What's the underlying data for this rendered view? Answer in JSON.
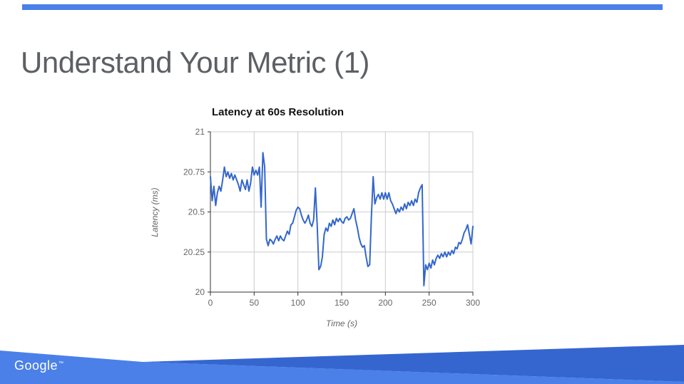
{
  "slide": {
    "title": "Understand Your Metric (1)",
    "top_bar_color": "#4a80e8",
    "footer": {
      "logo": "Google",
      "trademark": "™",
      "band_light": "#4a80e8",
      "band_dark": "#3566d0"
    }
  },
  "chart_data": {
    "type": "line",
    "title": "Latency at 60s Resolution",
    "xlabel": "Time (s)",
    "ylabel": "Latency (ms)",
    "xlim": [
      0,
      300
    ],
    "ylim": [
      20,
      21
    ],
    "xticks": [
      0,
      50,
      100,
      150,
      200,
      250,
      300
    ],
    "yticks": [
      20,
      20.25,
      20.5,
      20.75,
      21
    ],
    "grid": true,
    "legend": false,
    "line_color": "#3366cc",
    "grid_color": "#cccccc",
    "axis_color": "#333333",
    "tick_color": "#666666",
    "series": [
      {
        "name": "latency_ms",
        "x": [
          0,
          2,
          4,
          6,
          8,
          10,
          12,
          14,
          16,
          18,
          20,
          22,
          24,
          26,
          28,
          30,
          32,
          34,
          36,
          38,
          40,
          42,
          44,
          46,
          48,
          50,
          52,
          54,
          56,
          58,
          60,
          62,
          64,
          66,
          68,
          70,
          72,
          74,
          76,
          78,
          80,
          82,
          84,
          86,
          88,
          90,
          92,
          94,
          96,
          98,
          100,
          102,
          104,
          106,
          108,
          110,
          112,
          114,
          116,
          118,
          120,
          122,
          124,
          126,
          128,
          130,
          132,
          134,
          136,
          138,
          140,
          142,
          144,
          146,
          148,
          150,
          152,
          154,
          156,
          158,
          160,
          162,
          164,
          166,
          168,
          170,
          172,
          174,
          176,
          178,
          180,
          182,
          184,
          186,
          188,
          190,
          192,
          194,
          196,
          198,
          200,
          202,
          204,
          206,
          208,
          210,
          212,
          214,
          216,
          218,
          220,
          222,
          224,
          226,
          228,
          230,
          232,
          234,
          236,
          238,
          240,
          242,
          244,
          246,
          248,
          250,
          252,
          254,
          256,
          258,
          260,
          262,
          264,
          266,
          268,
          270,
          272,
          274,
          276,
          278,
          280,
          282,
          284,
          286,
          288,
          290,
          292,
          294,
          296,
          298,
          300
        ],
        "y": [
          20.72,
          20.57,
          20.66,
          20.54,
          20.62,
          20.66,
          20.63,
          20.7,
          20.78,
          20.72,
          20.75,
          20.71,
          20.74,
          20.7,
          20.73,
          20.7,
          20.67,
          20.63,
          20.7,
          20.67,
          20.64,
          20.7,
          20.63,
          20.68,
          20.78,
          20.73,
          20.76,
          20.73,
          20.78,
          20.53,
          20.87,
          20.78,
          20.33,
          20.29,
          20.33,
          20.32,
          20.3,
          20.33,
          20.35,
          20.32,
          20.35,
          20.33,
          20.32,
          20.35,
          20.38,
          20.36,
          20.42,
          20.43,
          20.47,
          20.51,
          20.53,
          20.52,
          20.48,
          20.45,
          20.43,
          20.45,
          20.48,
          20.43,
          20.41,
          20.45,
          20.65,
          20.42,
          20.14,
          20.16,
          20.22,
          20.36,
          20.4,
          20.38,
          20.43,
          20.41,
          20.45,
          20.42,
          20.46,
          20.44,
          20.46,
          20.44,
          20.43,
          20.46,
          20.47,
          20.45,
          20.46,
          20.49,
          20.52,
          20.45,
          20.4,
          20.34,
          20.3,
          20.28,
          20.29,
          20.22,
          20.16,
          20.17,
          20.47,
          20.72,
          20.55,
          20.59,
          20.61,
          20.58,
          20.62,
          20.58,
          20.62,
          20.58,
          20.62,
          20.57,
          20.55,
          20.52,
          20.49,
          20.52,
          20.5,
          20.53,
          20.51,
          20.55,
          20.52,
          20.56,
          20.54,
          20.57,
          20.54,
          20.58,
          20.56,
          20.62,
          20.65,
          20.67,
          20.04,
          20.17,
          20.14,
          20.18,
          20.15,
          20.2,
          20.17,
          20.21,
          20.23,
          20.21,
          20.24,
          20.22,
          20.25,
          20.22,
          20.25,
          20.23,
          20.26,
          20.24,
          20.28,
          20.27,
          20.31,
          20.3,
          20.33,
          20.37,
          20.39,
          20.42,
          20.36,
          20.3,
          20.41
        ]
      }
    ]
  }
}
